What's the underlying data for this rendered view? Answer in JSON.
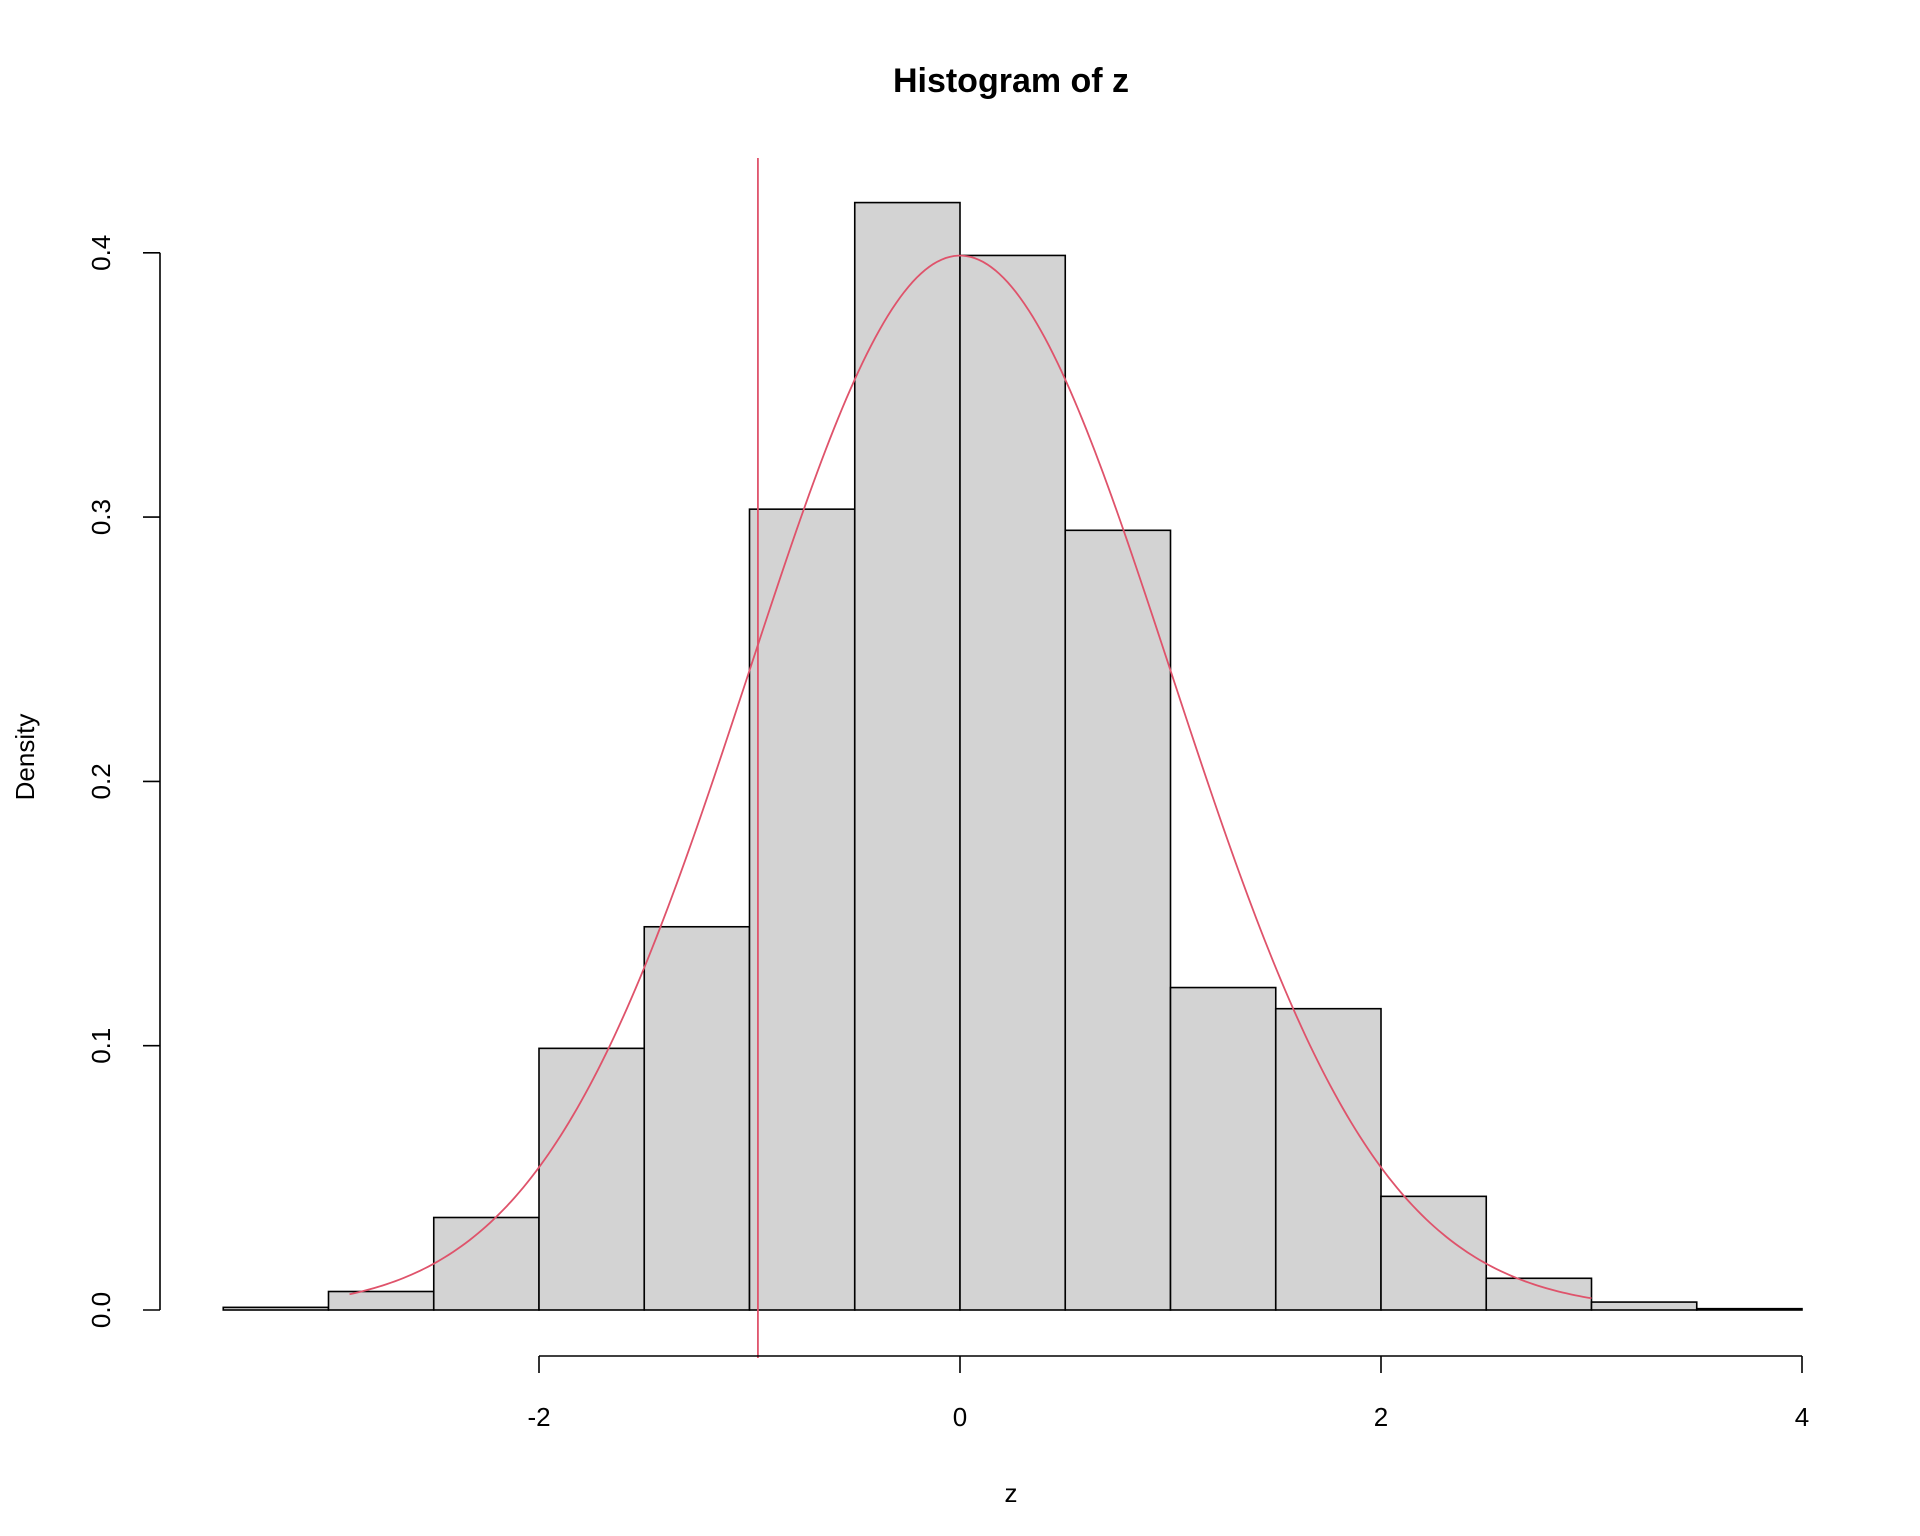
{
  "chart_data": {
    "type": "bar",
    "title": "Histogram of z",
    "xlabel": "z",
    "ylabel": "Density",
    "xlim": [
      -3.5,
      4
    ],
    "ylim": [
      0,
      0.4
    ],
    "x_ticks": [
      -2,
      0,
      2,
      4
    ],
    "x_tick_labels": [
      "-2",
      "0",
      "2",
      "4"
    ],
    "y_ticks": [
      0.0,
      0.1,
      0.2,
      0.3,
      0.4
    ],
    "y_tick_labels": [
      "0.0",
      "0.1",
      "0.2",
      "0.3",
      "0.4"
    ],
    "bins": [
      {
        "x0": -3.5,
        "x1": -3.0,
        "density": 0.001
      },
      {
        "x0": -3.0,
        "x1": -2.5,
        "density": 0.007
      },
      {
        "x0": -2.5,
        "x1": -2.0,
        "density": 0.035
      },
      {
        "x0": -2.0,
        "x1": -1.5,
        "density": 0.099
      },
      {
        "x0": -1.5,
        "x1": -1.0,
        "density": 0.145
      },
      {
        "x0": -1.0,
        "x1": -0.5,
        "density": 0.303
      },
      {
        "x0": -0.5,
        "x1": 0.0,
        "density": 0.419
      },
      {
        "x0": 0.0,
        "x1": 0.5,
        "density": 0.399
      },
      {
        "x0": 0.5,
        "x1": 1.0,
        "density": 0.295
      },
      {
        "x0": 1.0,
        "x1": 1.5,
        "density": 0.122
      },
      {
        "x0": 1.5,
        "x1": 2.0,
        "density": 0.114
      },
      {
        "x0": 2.0,
        "x1": 2.5,
        "density": 0.043
      },
      {
        "x0": 2.5,
        "x1": 3.0,
        "density": 0.012
      },
      {
        "x0": 3.0,
        "x1": 3.5,
        "density": 0.003
      },
      {
        "x0": 3.5,
        "x1": 4.0,
        "density": 0.0005
      }
    ],
    "density_curve": {
      "type": "normal",
      "mean": 0,
      "sd": 1,
      "x_range": [
        -2.9,
        3.0
      ]
    },
    "vertical_line": {
      "x": -0.96
    },
    "colors": {
      "bar_fill": "#d3d3d3",
      "bar_stroke": "#000000",
      "curve": "#df536b"
    },
    "grid": false,
    "legend": "none"
  }
}
